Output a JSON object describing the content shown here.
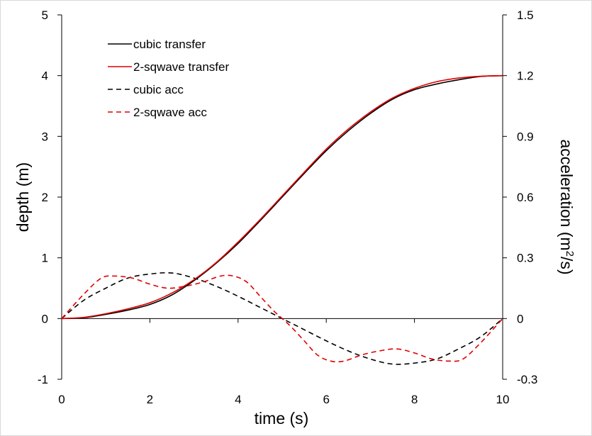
{
  "chart_data": {
    "type": "line",
    "xlabel": "time (s)",
    "ylabel_left": "depth (m)",
    "ylabel_right_main": "acceleration (m",
    "ylabel_right_sup": "2",
    "ylabel_right_tail": "/s)",
    "xlim": [
      0,
      10
    ],
    "ylim_left": [
      -1,
      5
    ],
    "ylim_right": [
      -0.3,
      1.5
    ],
    "xticks": [
      "0",
      "2",
      "4",
      "6",
      "8",
      "10"
    ],
    "yticks_left": [
      "-1",
      "0",
      "1",
      "2",
      "3",
      "4",
      "5"
    ],
    "yticks_right": [
      "-0.3",
      "0",
      "0.3",
      "0.6",
      "0.9",
      "1.2",
      "1.5"
    ],
    "legend_position": "top-left",
    "grid": false,
    "series": [
      {
        "name": "cubic transfer",
        "axis": "left",
        "color": "#000000",
        "dash": "solid",
        "x": [
          0,
          0.5,
          1,
          1.5,
          2,
          2.5,
          3,
          3.5,
          4,
          4.5,
          5,
          5.5,
          6,
          6.5,
          7,
          7.5,
          8,
          8.5,
          9,
          9.5,
          10
        ],
        "y": [
          0,
          0.014,
          0.069,
          0.139,
          0.232,
          0.389,
          0.624,
          0.908,
          1.236,
          1.611,
          2.0,
          2.389,
          2.764,
          3.092,
          3.376,
          3.611,
          3.768,
          3.861,
          3.931,
          3.986,
          4.0
        ]
      },
      {
        "name": "2-sqwave transfer",
        "axis": "left",
        "color": "#e00000",
        "dash": "solid",
        "x": [
          0,
          0.5,
          1,
          1.5,
          2,
          2.5,
          3,
          3.5,
          4,
          4.5,
          5,
          5.5,
          6,
          6.5,
          7,
          7.5,
          8,
          8.5,
          9,
          9.5,
          10
        ],
        "y": [
          0,
          0.02,
          0.08,
          0.16,
          0.26,
          0.42,
          0.64,
          0.92,
          1.26,
          1.63,
          2.02,
          2.41,
          2.79,
          3.12,
          3.4,
          3.63,
          3.79,
          3.9,
          3.96,
          3.99,
          4.0
        ]
      },
      {
        "name": "cubic acc",
        "axis": "right",
        "color": "#000000",
        "dash": "dashed",
        "x": [
          0,
          0.5,
          1,
          1.5,
          2,
          2.5,
          3,
          3.5,
          4,
          4.5,
          5,
          5.5,
          6,
          6.5,
          7,
          7.5,
          8,
          8.5,
          9,
          9.5,
          10
        ],
        "y": [
          0,
          0.09,
          0.15,
          0.2,
          0.22,
          0.225,
          0.2,
          0.16,
          0.11,
          0.055,
          0,
          -0.055,
          -0.11,
          -0.16,
          -0.2,
          -0.225,
          -0.22,
          -0.2,
          -0.15,
          -0.09,
          0
        ]
      },
      {
        "name": "2-sqwave acc",
        "axis": "right",
        "color": "#e00000",
        "dash": "dashed",
        "x": [
          0,
          0.5,
          0.9,
          1.2,
          1.6,
          2,
          2.4,
          2.8,
          3.2,
          3.6,
          3.9,
          4.2,
          4.5,
          4.8,
          5,
          5.2,
          5.5,
          5.8,
          6.1,
          6.4,
          6.8,
          7.2,
          7.6,
          8,
          8.4,
          8.8,
          9.1,
          9.5,
          10
        ],
        "y": [
          0,
          0.12,
          0.2,
          0.21,
          0.2,
          0.17,
          0.15,
          0.16,
          0.18,
          0.21,
          0.21,
          0.18,
          0.11,
          0.04,
          0,
          -0.04,
          -0.11,
          -0.18,
          -0.21,
          -0.21,
          -0.18,
          -0.16,
          -0.15,
          -0.17,
          -0.2,
          -0.21,
          -0.2,
          -0.12,
          0
        ]
      }
    ]
  }
}
